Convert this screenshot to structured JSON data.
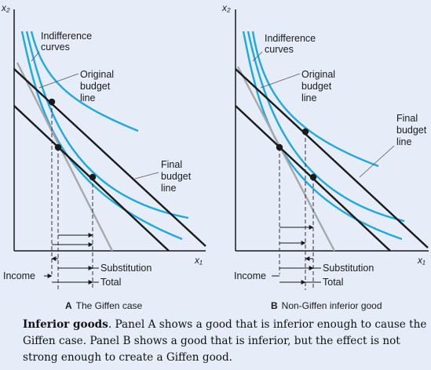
{
  "panel_a": {
    "axis_y": "x₂",
    "axis_x": "x₁",
    "indiff_line1": "Indifference",
    "indiff_line2": "curves",
    "orig_line1": "Original",
    "orig_line2": "budget",
    "orig_line3": "line",
    "final_line1": "Final",
    "final_line2": "budget",
    "final_line3": "line",
    "income": "Income",
    "substitution": "Substitution",
    "total": "Total",
    "caption_letter": "A",
    "caption_text": "The Giffen case"
  },
  "panel_b": {
    "axis_y": "x₂",
    "axis_x": "x₁",
    "indiff_line1": "Indifference",
    "indiff_line2": "curves",
    "orig_line1": "Original",
    "orig_line2": "budget",
    "orig_line3": "line",
    "final_line1": "Final",
    "final_line2": "budget",
    "final_line3": "line",
    "income": "Income",
    "substitution": "Substitution",
    "total": "Total",
    "caption_letter": "B",
    "caption_text": "Non-Giffen inferior good"
  },
  "caption": {
    "title": "Inferior goods",
    "body": ". Panel A shows a good that is inferior enough to cause the Giffen case. Panel B shows a good that is inferior, but the effect is not strong enough to create a Giffen good."
  },
  "colors": {
    "background": "#e6edf8",
    "curve": "#1ea8e0",
    "budget": "#1a1a1a",
    "pivot": "#a8a8a8"
  }
}
